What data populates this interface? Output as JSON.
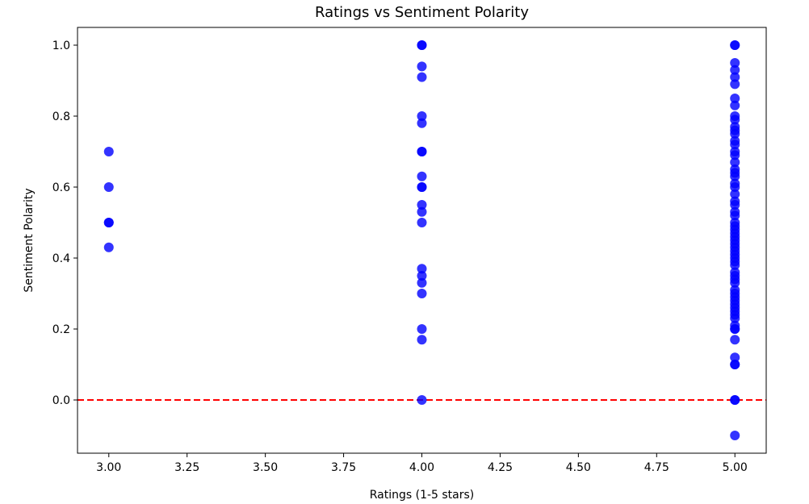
{
  "chart_data": {
    "type": "scatter",
    "title": "Ratings vs Sentiment Polarity",
    "xlabel": "Ratings (1-5 stars)",
    "ylabel": "Sentiment Polarity",
    "xlim": [
      2.9,
      5.1
    ],
    "ylim": [
      -0.15,
      1.05
    ],
    "xticks": [
      3.0,
      3.25,
      3.5,
      3.75,
      4.0,
      4.25,
      4.5,
      4.75,
      5.0
    ],
    "xtick_labels": [
      "3.00",
      "3.25",
      "3.50",
      "3.75",
      "4.00",
      "4.25",
      "4.50",
      "4.75",
      "5.00"
    ],
    "yticks": [
      0.0,
      0.2,
      0.4,
      0.6,
      0.8,
      1.0
    ],
    "ytick_labels": [
      "0.0",
      "0.2",
      "0.4",
      "0.6",
      "0.8",
      "1.0"
    ],
    "grid": false,
    "point_color": "#0000ff",
    "point_alpha": 0.8,
    "reference_line": {
      "y": 0.0,
      "style": "dashed",
      "color": "#ff0000"
    },
    "series": [
      {
        "x": [
          3,
          3,
          3,
          3,
          3,
          4,
          4,
          4,
          4,
          4,
          4,
          4,
          4,
          4,
          4,
          4,
          4,
          4,
          4,
          4,
          4,
          4,
          4,
          4,
          4,
          4,
          5,
          5,
          5,
          5,
          5,
          5,
          5,
          5,
          5,
          5,
          5,
          5,
          5,
          5,
          5,
          5,
          5,
          5,
          5,
          5,
          5,
          5,
          5,
          5,
          5,
          5,
          5,
          5,
          5,
          5,
          5,
          5,
          5,
          5,
          5,
          5,
          5,
          5,
          5,
          5,
          5,
          5,
          5,
          5,
          5,
          5,
          5,
          5,
          5,
          5,
          5,
          5,
          5,
          5,
          5,
          5,
          5,
          5,
          5,
          5,
          5,
          5,
          5,
          5
        ],
        "y": [
          0.7,
          0.6,
          0.5,
          0.5,
          0.43,
          1.0,
          1.0,
          0.94,
          0.91,
          0.8,
          0.78,
          0.7,
          0.7,
          0.63,
          0.6,
          0.6,
          0.55,
          0.53,
          0.5,
          0.37,
          0.35,
          0.33,
          0.3,
          0.2,
          0.17,
          0.0,
          1.0,
          1.0,
          0.95,
          0.93,
          0.91,
          0.89,
          0.85,
          0.83,
          0.8,
          0.79,
          0.77,
          0.75,
          0.73,
          0.7,
          0.69,
          0.67,
          0.65,
          0.63,
          0.61,
          0.6,
          0.56,
          0.55,
          0.53,
          0.52,
          0.5,
          0.49,
          0.47,
          0.46,
          0.45,
          0.43,
          0.42,
          0.4,
          0.39,
          0.38,
          0.36,
          0.35,
          0.33,
          0.31,
          0.3,
          0.28,
          0.27,
          0.26,
          0.25,
          0.23,
          0.21,
          0.2,
          0.2,
          0.17,
          0.12,
          0.1,
          0.1,
          0.0,
          0.0,
          -0.1,
          0.58,
          0.48,
          0.41,
          0.34,
          0.29,
          0.24,
          0.64,
          0.72,
          0.76,
          0.44
        ]
      }
    ]
  }
}
